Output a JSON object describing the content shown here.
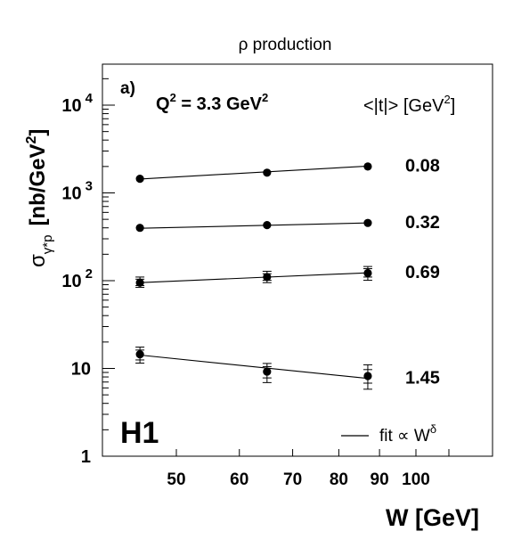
{
  "chart_data": {
    "type": "scatter",
    "title": "ρ production",
    "panel_label": "a)",
    "condition": {
      "text": "Q",
      "sup": "2",
      "text2": " = 3.3 GeV",
      "sup2": "2"
    },
    "experiment": "H1",
    "xlabel": "W [GeV]",
    "ylabel": {
      "main": "σ",
      "sub": "γ*p",
      "unit": "[nb/GeV",
      "unit_sup": "2",
      "unit_close": "]"
    },
    "x_scale": "log",
    "y_scale": "log",
    "xlim": [
      36,
      120
    ],
    "ylim": [
      1,
      30000
    ],
    "x_ticks": [
      {
        "value": 50,
        "label": "50"
      },
      {
        "value": 60,
        "label": "60"
      },
      {
        "value": 70,
        "label": "70"
      },
      {
        "value": 80,
        "label": "80"
      },
      {
        "value": 90,
        "label": "90"
      },
      {
        "value": 100,
        "label": "100"
      }
    ],
    "y_ticks": [
      {
        "value": 1,
        "base": "1",
        "exp": ""
      },
      {
        "value": 10,
        "base": "10",
        "exp": ""
      },
      {
        "value": 100,
        "base": "10",
        "exp": "2"
      },
      {
        "value": 1000,
        "base": "10",
        "exp": "3"
      },
      {
        "value": 10000,
        "base": "10",
        "exp": "4"
      }
    ],
    "legend_header": {
      "text": "<|t|> [GeV",
      "sup": "2",
      "close": "]"
    },
    "legend_fit": {
      "text": "fit ∝ W",
      "sup": "δ"
    },
    "grid": false,
    "series": [
      {
        "name": "0.08",
        "x": [
          45,
          65,
          87
        ],
        "y": [
          1450,
          1700,
          2000
        ],
        "err_lo": [
          0,
          0,
          0
        ],
        "err_hi": [
          0,
          0,
          0
        ],
        "syst_lo": [
          0,
          0,
          0
        ],
        "syst_hi": [
          0,
          0,
          0
        ],
        "fit": [
          1440,
          2020
        ]
      },
      {
        "name": "0.32",
        "x": [
          45,
          65,
          87
        ],
        "y": [
          400,
          430,
          455
        ],
        "err_lo": [
          0,
          0,
          0
        ],
        "err_hi": [
          0,
          0,
          0
        ],
        "syst_lo": [
          0,
          0,
          0
        ],
        "syst_hi": [
          0,
          0,
          0
        ],
        "fit": [
          395,
          455
        ]
      },
      {
        "name": "0.69",
        "x": [
          45,
          65,
          87
        ],
        "y": [
          95,
          110,
          122
        ],
        "err_lo": [
          88,
          101,
          110
        ],
        "err_hi": [
          104,
          120,
          137
        ],
        "syst_lo": [
          84,
          95,
          101
        ],
        "syst_hi": [
          110,
          128,
          145
        ],
        "fit": [
          95,
          123
        ]
      },
      {
        "name": "1.45",
        "x": [
          45,
          65,
          87
        ],
        "y": [
          14.5,
          9.2,
          8.2
        ],
        "err_lo": [
          12.5,
          7.8,
          6.8
        ],
        "err_hi": [
          16.2,
          10.5,
          9.7
        ],
        "syst_lo": [
          11.5,
          6.9,
          5.8
        ],
        "syst_hi": [
          17.5,
          11.4,
          11.0
        ],
        "fit": [
          14.2,
          7.7
        ]
      }
    ]
  }
}
